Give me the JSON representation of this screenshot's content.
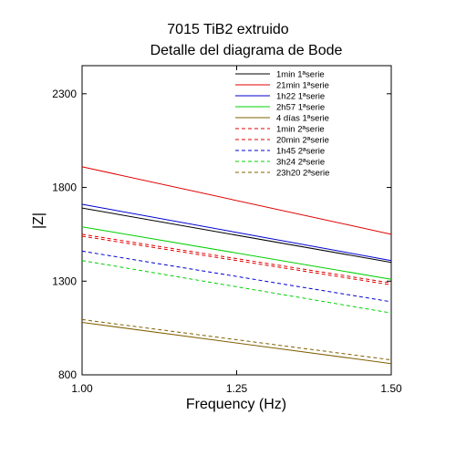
{
  "chart_data": {
    "type": "line",
    "title": "7015 TiB2 extruido",
    "subtitle": "Detalle del diagrama de Bode",
    "xlabel": "Frequency (Hz)",
    "ylabel": "|Z|",
    "xlim": [
      1.0,
      1.5
    ],
    "ylim": [
      800,
      2450
    ],
    "xticks": [
      1.0,
      1.25,
      1.5
    ],
    "xtick_labels": [
      "1.00",
      "1.25",
      "1.50"
    ],
    "yticks": [
      800,
      1300,
      1800,
      2300
    ],
    "ytick_labels": [
      "800",
      "1300",
      "1800",
      "2300"
    ],
    "grid": false,
    "legend_position": "top-right",
    "series": [
      {
        "name": "1min 1ªserie",
        "color": "#000000",
        "dash": "solid",
        "x": [
          1.0,
          1.5
        ],
        "y": [
          1690,
          1400
        ]
      },
      {
        "name": "21min 1ªserie",
        "color": "#e00000",
        "dash": "solid",
        "x": [
          1.0,
          1.5
        ],
        "y": [
          1910,
          1550
        ]
      },
      {
        "name": "1h22 1ªserie",
        "color": "#0000d0",
        "dash": "solid",
        "x": [
          1.0,
          1.5
        ],
        "y": [
          1710,
          1410
        ]
      },
      {
        "name": "2h57 1ªserie",
        "color": "#00d000",
        "dash": "solid",
        "x": [
          1.0,
          1.5
        ],
        "y": [
          1590,
          1310
        ]
      },
      {
        "name": "4 días 1ªserie",
        "color": "#806000",
        "dash": "solid",
        "x": [
          1.0,
          1.5
        ],
        "y": [
          1080,
          860
        ]
      },
      {
        "name": "1min 2ªserie",
        "color": "#e00000",
        "dash": "dashed",
        "x": [
          1.0,
          1.5
        ],
        "y": [
          1540,
          1280
        ]
      },
      {
        "name": "20min 2ªserie",
        "color": "#e00000",
        "dash": "dashed",
        "x": [
          1.0,
          1.5
        ],
        "y": [
          1550,
          1290
        ]
      },
      {
        "name": "1h45 2ªserie",
        "color": "#0000d0",
        "dash": "dashed",
        "x": [
          1.0,
          1.5
        ],
        "y": [
          1460,
          1190
        ]
      },
      {
        "name": "3h24 2ªserie",
        "color": "#00d000",
        "dash": "dashed",
        "x": [
          1.0,
          1.5
        ],
        "y": [
          1410,
          1130
        ]
      },
      {
        "name": "23h20 2ªserie",
        "color": "#806000",
        "dash": "dashed",
        "x": [
          1.0,
          1.5
        ],
        "y": [
          1095,
          880
        ]
      }
    ]
  }
}
